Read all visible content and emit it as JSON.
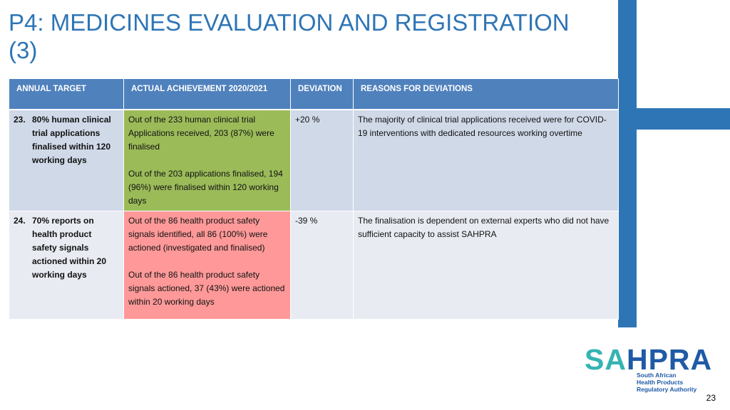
{
  "slide": {
    "title": "P4: MEDICINES EVALUATION AND REGISTRATION (3)",
    "page_number": "23"
  },
  "table": {
    "headers": [
      "ANNUAL TARGET",
      "ACTUAL ACHIEVEMENT 2020/2021",
      "DEVIATION",
      "REASONS FOR DEVIATIONS"
    ],
    "rows": [
      {
        "num": "23.",
        "target": "80% human clinical trial applications finalised within 120 working days",
        "achievement_1": "Out of the 233 human clinical trial Applications received, 203 (87%) were finalised",
        "achievement_2": "Out of the 203 applications finalised, 194 (96%) were finalised within 120 working days",
        "deviation": "+20 %",
        "reason": "The majority of clinical trial applications received were for COVID-19 interventions with dedicated resources working overtime",
        "achievement_color": "#9bbb59"
      },
      {
        "num": "24.",
        "target": "70% reports on health product safety signals actioned within 20 working days",
        "achievement_1": "Out of the 86 health product safety signals identified, all 86 (100%) were actioned (investigated and finalised)",
        "achievement_2": "Out of the 86 health product safety signals actioned, 37 (43%) were actioned within 20 working days",
        "deviation": "-39 %",
        "reason": "The finalisation is dependent on external experts who did not have sufficient capacity to assist SAHPRA",
        "achievement_color": "#ff9999"
      }
    ]
  },
  "logo": {
    "sa": "SA",
    "hpra": "HPRA",
    "tagline_1": "South African",
    "tagline_2": "Health Products",
    "tagline_3": "Regulatory Authority"
  },
  "colors": {
    "accent": "#2e75b6",
    "header_bg": "#4f81bd"
  }
}
